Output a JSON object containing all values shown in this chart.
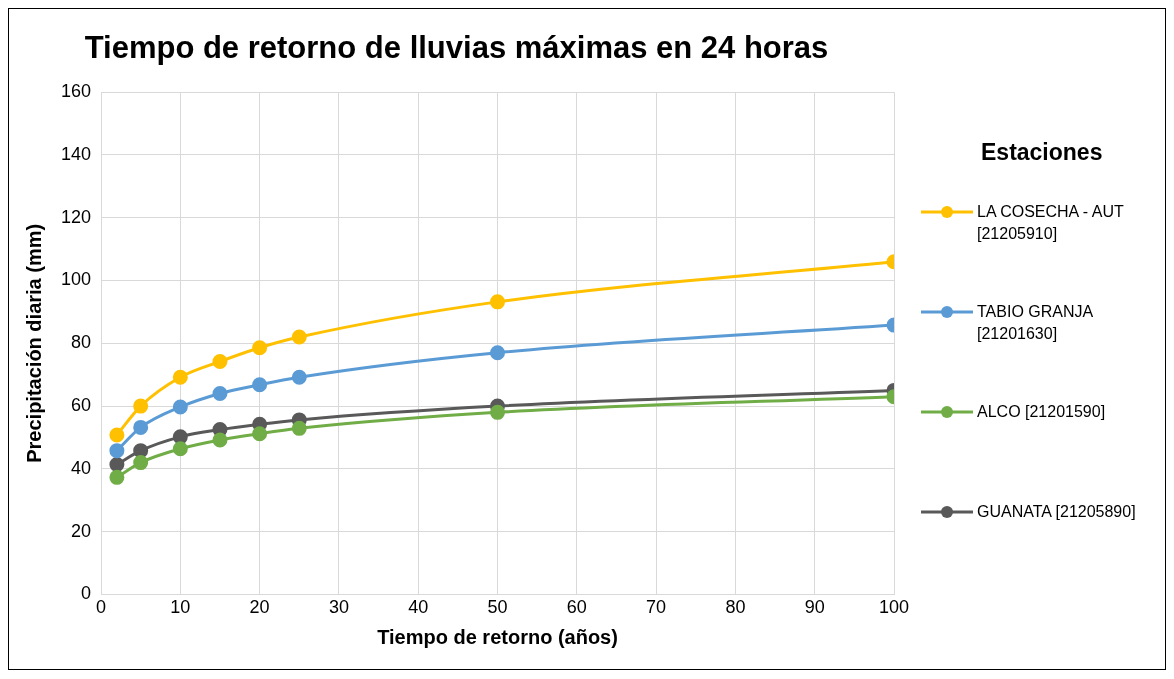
{
  "chart_data": {
    "type": "line",
    "title": "Tiempo de retorno de lluvias máximas en 24 horas",
    "xlabel": "Tiempo de retorno (años)",
    "ylabel": "Precipitación diaria (mm)",
    "legend_title": "Estaciones",
    "x": [
      2,
      5,
      10,
      15,
      20,
      25,
      50,
      100
    ],
    "series": [
      {
        "name": "LA COSECHA - AUT [21205910]",
        "color": "#ffc000",
        "values": [
          50.8,
          60,
          69.2,
          74.2,
          78.6,
          82,
          93.2,
          106
        ]
      },
      {
        "name": "TABIO GRANJA [21201630]",
        "color": "#5b9bd5",
        "values": [
          45.8,
          53.2,
          59.7,
          64,
          66.8,
          69.2,
          77,
          85.8
        ]
      },
      {
        "name": "ALCO  [21201590]",
        "color": "#70ad47",
        "values": [
          37.3,
          42,
          46.4,
          49.2,
          51.2,
          52.9,
          58,
          63
        ]
      },
      {
        "name": "GUANATA [21205890]",
        "color": "#595959",
        "values": [
          41.4,
          45.8,
          50.2,
          52.5,
          54.2,
          55.6,
          60,
          65
        ]
      }
    ],
    "xlim": [
      0,
      100
    ],
    "xticks": [
      0,
      10,
      20,
      30,
      40,
      50,
      60,
      70,
      80,
      90,
      100
    ],
    "ylim": [
      0,
      160
    ],
    "yticks": [
      0,
      20,
      40,
      60,
      80,
      100,
      120,
      140,
      160
    ],
    "grid": true,
    "legend": "right",
    "marker": "circle",
    "line_style": "solid"
  }
}
